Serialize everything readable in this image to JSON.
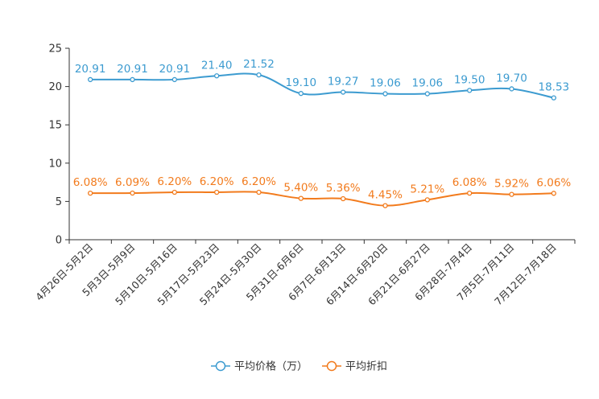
{
  "chart_data": {
    "type": "line",
    "title": "",
    "xlabel": "",
    "ylabel": "",
    "ylim": [
      0,
      25
    ],
    "yticks": [
      0,
      5,
      10,
      15,
      20,
      25
    ],
    "categories": [
      "4月26日-5月2日",
      "5月3日-5月9日",
      "5月10日-5月16日",
      "5月17日-5月23日",
      "5月24日-5月30日",
      "5月31日-6月6日",
      "6月7日-6月13日",
      "6月14日-6月20日",
      "6月21日-6月27日",
      "6月28日-7月4日",
      "7月5日-7月11日",
      "7月12日-7月18日"
    ],
    "series": [
      {
        "name": "平均价格（万）",
        "color": "#3c9bd0",
        "values": [
          20.91,
          20.91,
          20.91,
          21.4,
          21.52,
          19.1,
          19.27,
          19.06,
          19.06,
          19.5,
          19.7,
          18.53
        ],
        "labels": [
          "20.91",
          "20.91",
          "20.91",
          "21.40",
          "21.52",
          "19.10",
          "19.27",
          "19.06",
          "19.06",
          "19.50",
          "19.70",
          "18.53"
        ]
      },
      {
        "name": "平均折扣",
        "color": "#f27b1d",
        "values": [
          6.08,
          6.09,
          6.2,
          6.2,
          6.2,
          5.4,
          5.36,
          4.45,
          5.21,
          6.08,
          5.92,
          6.06
        ],
        "labels": [
          "6.08%",
          "6.09%",
          "6.20%",
          "6.20%",
          "6.20%",
          "5.40%",
          "5.36%",
          "4.45%",
          "5.21%",
          "6.08%",
          "5.92%",
          "6.06%"
        ]
      }
    ],
    "legend_position": "bottom-center",
    "grid": false
  }
}
